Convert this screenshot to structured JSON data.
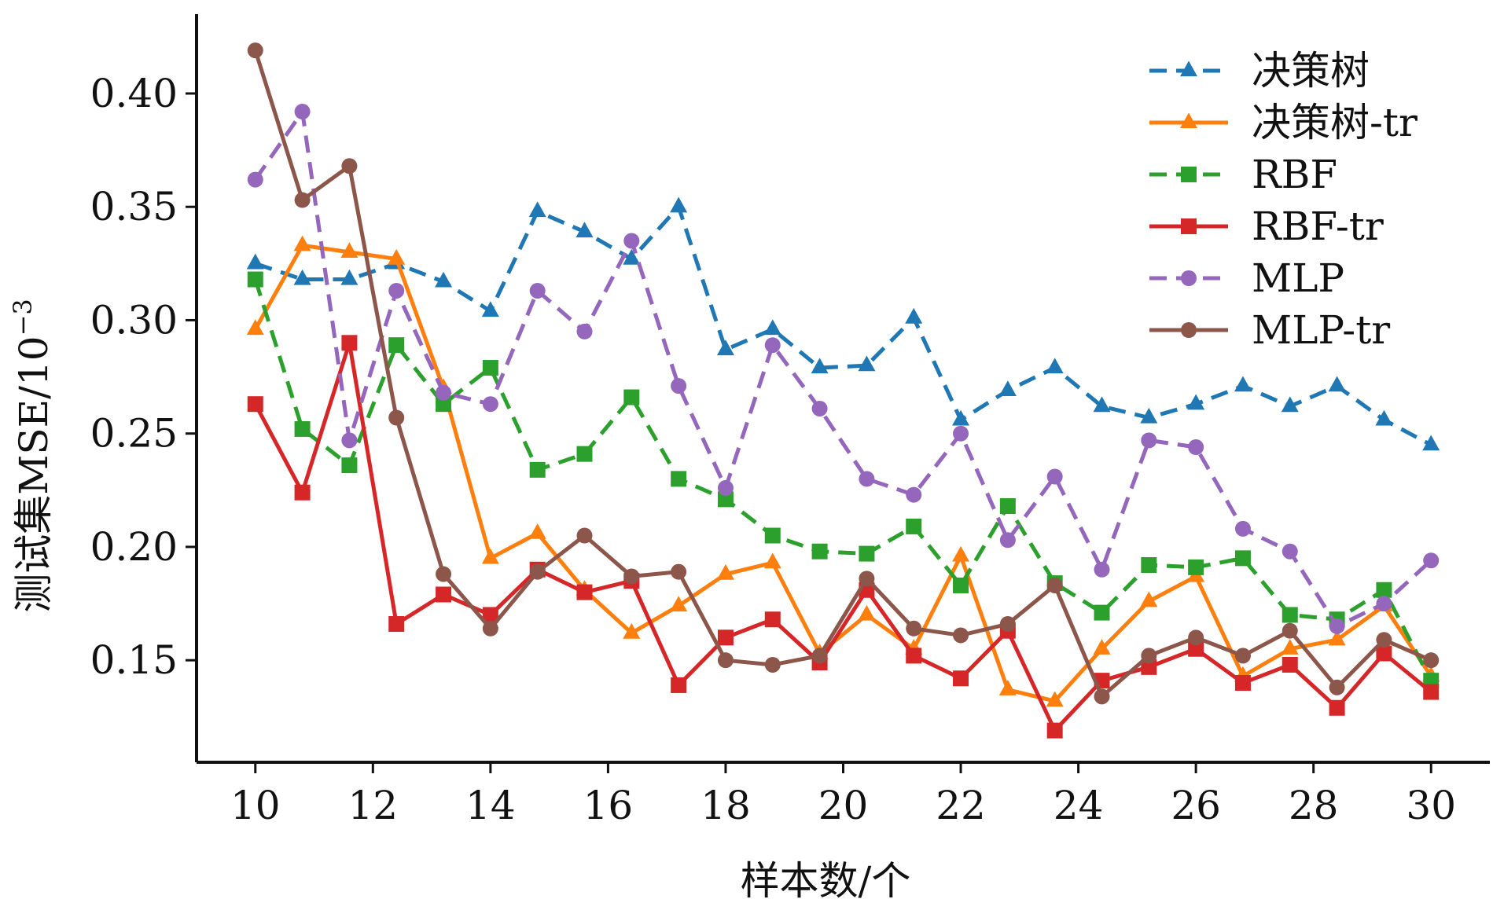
{
  "chart_data": {
    "type": "line",
    "title": "",
    "xlabel": "样本数/个",
    "ylabel_main": "测试集MSE/10",
    "ylabel_exp": "−3",
    "xlim": [
      9.0,
      31.0
    ],
    "ylim": [
      0.105,
      0.435
    ],
    "xticks": [
      10,
      12,
      14,
      16,
      18,
      20,
      22,
      24,
      26,
      28,
      30
    ],
    "xtick_labels": [
      "10",
      "12",
      "14",
      "16",
      "18",
      "20",
      "22",
      "24",
      "26",
      "28",
      "30"
    ],
    "yticks": [
      0.15,
      0.2,
      0.25,
      0.3,
      0.35,
      0.4
    ],
    "ytick_labels": [
      "0.15",
      "0.20",
      "0.25",
      "0.30",
      "0.35",
      "0.40"
    ],
    "legend_position": "top-right",
    "x": [
      10,
      10.8,
      11.6,
      12.4,
      13.2,
      14,
      14.8,
      15.6,
      16.4,
      17.2,
      18,
      18.8,
      19.6,
      20.4,
      21.2,
      22,
      22.8,
      23.6,
      24.4,
      25.2,
      26,
      26.8,
      27.6,
      28.4,
      29.2,
      30
    ],
    "series": [
      {
        "name": "决策树",
        "color": "#1f77b4",
        "dash": "dashed",
        "marker": "triangle",
        "values": [
          0.325,
          0.318,
          0.318,
          0.325,
          0.317,
          0.304,
          0.348,
          0.339,
          0.327,
          0.35,
          0.287,
          0.296,
          0.279,
          0.28,
          0.301,
          0.256,
          0.269,
          0.279,
          0.262,
          0.257,
          0.263,
          0.271,
          0.262,
          0.271,
          0.256,
          0.245
        ]
      },
      {
        "name": "决策树-tr",
        "color": "#ff7f0e",
        "dash": "solid",
        "marker": "triangle",
        "values": [
          0.296,
          0.333,
          0.33,
          0.327,
          0.27,
          0.195,
          0.206,
          0.181,
          0.162,
          0.174,
          0.188,
          0.193,
          0.153,
          0.17,
          0.155,
          0.196,
          0.137,
          0.132,
          0.155,
          0.176,
          0.187,
          0.143,
          0.155,
          0.159,
          0.174,
          0.143
        ]
      },
      {
        "name": "RBF",
        "color": "#2ca02c",
        "dash": "dashed",
        "marker": "square",
        "values": [
          0.318,
          0.252,
          0.236,
          0.289,
          0.263,
          0.279,
          0.234,
          0.241,
          0.266,
          0.23,
          0.221,
          0.205,
          0.198,
          0.197,
          0.209,
          0.183,
          0.218,
          0.184,
          0.171,
          0.192,
          0.191,
          0.195,
          0.17,
          0.168,
          0.181,
          0.141
        ]
      },
      {
        "name": "RBF-tr",
        "color": "#d62728",
        "dash": "solid",
        "marker": "square",
        "values": [
          0.263,
          0.224,
          0.29,
          0.166,
          0.179,
          0.17,
          0.19,
          0.18,
          0.185,
          0.139,
          0.16,
          0.168,
          0.149,
          0.181,
          0.152,
          0.142,
          0.163,
          0.119,
          0.141,
          0.147,
          0.155,
          0.14,
          0.148,
          0.129,
          0.153,
          0.136
        ]
      },
      {
        "name": "MLP",
        "color": "#9467bd",
        "dash": "dashed",
        "marker": "circle",
        "values": [
          0.362,
          0.392,
          0.247,
          0.313,
          0.268,
          0.263,
          0.313,
          0.295,
          0.335,
          0.271,
          0.226,
          0.289,
          0.261,
          0.23,
          0.223,
          0.25,
          0.203,
          0.231,
          0.19,
          0.247,
          0.244,
          0.208,
          0.198,
          0.165,
          0.175,
          0.194
        ]
      },
      {
        "name": "MLP-tr",
        "color": "#8c564b",
        "dash": "solid",
        "marker": "circle",
        "values": [
          0.419,
          0.353,
          0.368,
          0.257,
          0.188,
          0.164,
          0.189,
          0.205,
          0.187,
          0.189,
          0.15,
          0.148,
          0.152,
          0.186,
          0.164,
          0.161,
          0.166,
          0.183,
          0.134,
          0.152,
          0.16,
          0.152,
          0.163,
          0.138,
          0.159,
          0.15
        ]
      }
    ]
  }
}
